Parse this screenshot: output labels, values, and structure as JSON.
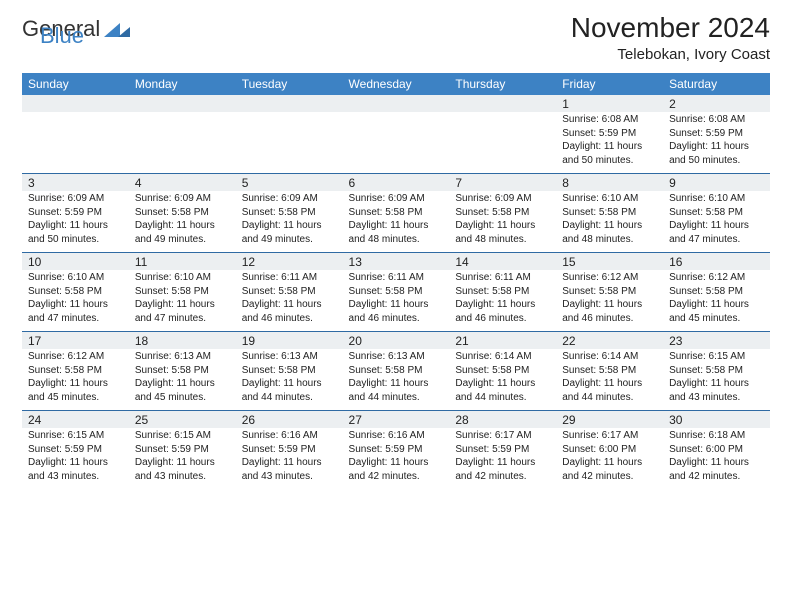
{
  "logo": {
    "general": "General",
    "blue": "Blue"
  },
  "title": "November 2024",
  "location": "Telebokan, Ivory Coast",
  "days": [
    "Sunday",
    "Monday",
    "Tuesday",
    "Wednesday",
    "Thursday",
    "Friday",
    "Saturday"
  ],
  "colors": {
    "header_bg": "#3d82c4",
    "header_text": "#ffffff",
    "date_bg": "#eceff1",
    "divider": "#2f6aa3",
    "text": "#222222",
    "page_bg": "#ffffff"
  },
  "fonts": {
    "title_pt": 28,
    "location_pt": 15,
    "header_pt": 12,
    "date_pt": 12,
    "cell_pt": 10
  },
  "labels": {
    "sunrise": "Sunrise: ",
    "sunset": "Sunset: ",
    "daylight_prefix": "Daylight: ",
    "daylight_hours_suffix": " hours and ",
    "daylight_minutes_suffix": " minutes."
  },
  "weeks": [
    {
      "dates": [
        "",
        "",
        "",
        "",
        "",
        "1",
        "2"
      ],
      "cells": [
        null,
        null,
        null,
        null,
        null,
        {
          "sunrise": "6:08 AM",
          "sunset": "5:59 PM",
          "dl_h": 11,
          "dl_m": 50
        },
        {
          "sunrise": "6:08 AM",
          "sunset": "5:59 PM",
          "dl_h": 11,
          "dl_m": 50
        }
      ]
    },
    {
      "dates": [
        "3",
        "4",
        "5",
        "6",
        "7",
        "8",
        "9"
      ],
      "cells": [
        {
          "sunrise": "6:09 AM",
          "sunset": "5:59 PM",
          "dl_h": 11,
          "dl_m": 50
        },
        {
          "sunrise": "6:09 AM",
          "sunset": "5:58 PM",
          "dl_h": 11,
          "dl_m": 49
        },
        {
          "sunrise": "6:09 AM",
          "sunset": "5:58 PM",
          "dl_h": 11,
          "dl_m": 49
        },
        {
          "sunrise": "6:09 AM",
          "sunset": "5:58 PM",
          "dl_h": 11,
          "dl_m": 48
        },
        {
          "sunrise": "6:09 AM",
          "sunset": "5:58 PM",
          "dl_h": 11,
          "dl_m": 48
        },
        {
          "sunrise": "6:10 AM",
          "sunset": "5:58 PM",
          "dl_h": 11,
          "dl_m": 48
        },
        {
          "sunrise": "6:10 AM",
          "sunset": "5:58 PM",
          "dl_h": 11,
          "dl_m": 47
        }
      ]
    },
    {
      "dates": [
        "10",
        "11",
        "12",
        "13",
        "14",
        "15",
        "16"
      ],
      "cells": [
        {
          "sunrise": "6:10 AM",
          "sunset": "5:58 PM",
          "dl_h": 11,
          "dl_m": 47
        },
        {
          "sunrise": "6:10 AM",
          "sunset": "5:58 PM",
          "dl_h": 11,
          "dl_m": 47
        },
        {
          "sunrise": "6:11 AM",
          "sunset": "5:58 PM",
          "dl_h": 11,
          "dl_m": 46
        },
        {
          "sunrise": "6:11 AM",
          "sunset": "5:58 PM",
          "dl_h": 11,
          "dl_m": 46
        },
        {
          "sunrise": "6:11 AM",
          "sunset": "5:58 PM",
          "dl_h": 11,
          "dl_m": 46
        },
        {
          "sunrise": "6:12 AM",
          "sunset": "5:58 PM",
          "dl_h": 11,
          "dl_m": 46
        },
        {
          "sunrise": "6:12 AM",
          "sunset": "5:58 PM",
          "dl_h": 11,
          "dl_m": 45
        }
      ]
    },
    {
      "dates": [
        "17",
        "18",
        "19",
        "20",
        "21",
        "22",
        "23"
      ],
      "cells": [
        {
          "sunrise": "6:12 AM",
          "sunset": "5:58 PM",
          "dl_h": 11,
          "dl_m": 45
        },
        {
          "sunrise": "6:13 AM",
          "sunset": "5:58 PM",
          "dl_h": 11,
          "dl_m": 45
        },
        {
          "sunrise": "6:13 AM",
          "sunset": "5:58 PM",
          "dl_h": 11,
          "dl_m": 44
        },
        {
          "sunrise": "6:13 AM",
          "sunset": "5:58 PM",
          "dl_h": 11,
          "dl_m": 44
        },
        {
          "sunrise": "6:14 AM",
          "sunset": "5:58 PM",
          "dl_h": 11,
          "dl_m": 44
        },
        {
          "sunrise": "6:14 AM",
          "sunset": "5:58 PM",
          "dl_h": 11,
          "dl_m": 44
        },
        {
          "sunrise": "6:15 AM",
          "sunset": "5:58 PM",
          "dl_h": 11,
          "dl_m": 43
        }
      ]
    },
    {
      "dates": [
        "24",
        "25",
        "26",
        "27",
        "28",
        "29",
        "30"
      ],
      "cells": [
        {
          "sunrise": "6:15 AM",
          "sunset": "5:59 PM",
          "dl_h": 11,
          "dl_m": 43
        },
        {
          "sunrise": "6:15 AM",
          "sunset": "5:59 PM",
          "dl_h": 11,
          "dl_m": 43
        },
        {
          "sunrise": "6:16 AM",
          "sunset": "5:59 PM",
          "dl_h": 11,
          "dl_m": 43
        },
        {
          "sunrise": "6:16 AM",
          "sunset": "5:59 PM",
          "dl_h": 11,
          "dl_m": 42
        },
        {
          "sunrise": "6:17 AM",
          "sunset": "5:59 PM",
          "dl_h": 11,
          "dl_m": 42
        },
        {
          "sunrise": "6:17 AM",
          "sunset": "6:00 PM",
          "dl_h": 11,
          "dl_m": 42
        },
        {
          "sunrise": "6:18 AM",
          "sunset": "6:00 PM",
          "dl_h": 11,
          "dl_m": 42
        }
      ]
    }
  ]
}
